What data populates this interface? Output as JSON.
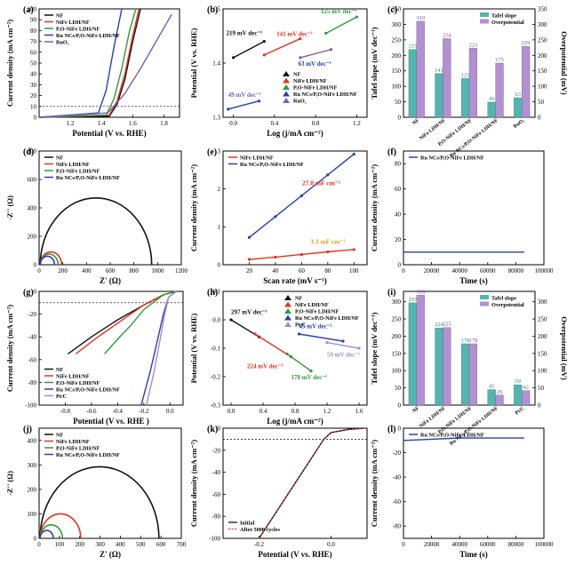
{
  "colors": {
    "NF": "#111111",
    "NiFe": "#e8311f",
    "PO": "#2e9a3a",
    "Ru": "#2440b8",
    "RuO2": "#7b5fb0",
    "PtC": "#a78acb",
    "tafel_bar": "#4fb7b0",
    "over_bar": "#b48fd4"
  },
  "panels": {
    "a": {
      "label": "(a)",
      "xlabel": "Potential (V vs. RHE)",
      "ylabel": "Current density (mA cm⁻²)",
      "legend": [
        "NF",
        "NiFe LDH/NF",
        "P,O-NiFe LDH/NF",
        "Ru NCs/P,O-NiFe LDH/NF",
        "RuO₂"
      ],
      "xticks": [
        "1.2",
        "1.4",
        "1.6",
        "1.8"
      ],
      "yticks": [
        "0",
        "10",
        "20",
        "30",
        "40",
        "50",
        "60",
        "70",
        "80",
        "90",
        "100"
      ]
    },
    "b": {
      "label": "(b)",
      "xlabel": "Log (j/mA cm⁻²)",
      "ylabel": "Potential (V vs. RHE)",
      "legend": [
        "NF",
        "NiFe LDH/NF",
        "P,O-NiFe LDH/NF",
        "Ru NCs/P,O-NiFe LDH/NF",
        "RuO₂"
      ],
      "annotations": [
        "219 mV dec⁻¹",
        "141 mV dec⁻¹",
        "125 mV dec⁻¹",
        "63 mV dec⁻¹",
        "49 mV dec⁻¹"
      ],
      "xticks": [
        "0.0",
        "0.4",
        "0.8",
        "1.2"
      ],
      "yticks": [
        "1.3",
        "1.4",
        "1.5"
      ]
    },
    "c": {
      "label": "(c)",
      "ylabel_left": "Tafel slope (mV dec⁻¹)",
      "ylabel_right": "Overpotential (mV)",
      "legend": [
        "Tafel slope",
        "Overpotential"
      ],
      "categories": [
        "NF",
        "NiFe LDH/NF",
        "P,O-NiFe LDH/NF",
        "Ru NCs/P,O-NiFe LDH/NF",
        "RuO₂"
      ],
      "yticks": [
        "0",
        "50",
        "100",
        "150",
        "200",
        "250",
        "300",
        "350"
      ]
    },
    "d": {
      "label": "(d)",
      "xlabel": "Z' (Ω)",
      "ylabel": "-Z'' (Ω)",
      "legend": [
        "NF",
        "NiFe LDH/NF",
        "P,O-NiFe LDH/NF",
        "Ru NCs/P,O-NiFe LDH/NF"
      ],
      "xticks": [
        "0",
        "200",
        "400",
        "600",
        "800",
        "1000",
        "1200"
      ],
      "yticks": [
        "0",
        "200",
        "400",
        "600",
        "800"
      ]
    },
    "e": {
      "label": "(e)",
      "xlabel": "Scan rate (mV s⁻¹)",
      "ylabel": "Current density (mA cm⁻²)",
      "legend": [
        "NiFe LDH/NF",
        "Ru NCs/P,O-NiFe LDH/NF"
      ],
      "annotations": [
        "27.0 mF cm⁻²",
        "3.3 mF cm⁻²"
      ],
      "xticks": [
        "20",
        "40",
        "60",
        "80",
        "100"
      ],
      "yticks": [
        "0",
        "1",
        "2",
        "3"
      ]
    },
    "f": {
      "label": "(f)",
      "xlabel": "Time (s)",
      "ylabel": "Current density (mA cm⁻²)",
      "legend": [
        "Ru NCs/P,O-NiFe LDH/NF"
      ],
      "xticks": [
        "0",
        "20000",
        "40000",
        "60000",
        "80000",
        "100000"
      ],
      "yticks": [
        "0",
        "20",
        "40",
        "60",
        "80"
      ]
    },
    "g": {
      "label": "(g)",
      "xlabel": "Potential (V vs. RHE )",
      "ylabel": "Current density (mA cm⁻²)",
      "legend": [
        "NF",
        "NiFe LDH/NF",
        "P,O-NiFe LDH/NF",
        "Ru NCs/P,O-NiFe LDH/NF",
        "Pt/C"
      ],
      "xticks": [
        "-0.8",
        "-0.6",
        "-0.4",
        "-0.2",
        "0.0"
      ],
      "yticks": [
        "-100",
        "-80",
        "-60",
        "-40",
        "-20",
        "0"
      ]
    },
    "h": {
      "label": "(h)",
      "xlabel": "Log (j/mA cm⁻²)",
      "ylabel": "Potential (V vs. RHE)",
      "legend": [
        "NF",
        "NiFe LDH/NF",
        "P,O-NiFe LDH/NF",
        "Ru NCs/P,O-NiFe LDH/NF",
        "Pt/C"
      ],
      "annotations": [
        "297 mV dec⁻¹",
        "224 mV dec⁻¹",
        "178 mV dec⁻¹",
        "45 mV dec⁻¹",
        "59 mV dec⁻¹"
      ],
      "xticks": [
        "0.0",
        "0.4",
        "0.8",
        "1.2",
        "1.6"
      ],
      "yticks": [
        "0.1",
        "0.0",
        "-0.1",
        "-0.2",
        "-0.3"
      ]
    },
    "i": {
      "label": "(i)",
      "ylabel_left": "Tafel slope (mV dec⁻¹)",
      "ylabel_right": "Overpotential (mV)",
      "legend": [
        "Tafel slope",
        "Overpotential"
      ],
      "categories": [
        "NF",
        "NiFe LDH/NF",
        "P,O-NiFe LDH/NF",
        "Ru NCs/P,O-NiFe LDH/NF",
        "Pt/C"
      ],
      "yticks": [
        "0",
        "50",
        "100",
        "150",
        "200",
        "250",
        "300"
      ]
    },
    "j": {
      "label": "(j)",
      "xlabel": "Z' (Ω)",
      "ylabel": "-Z'' (Ω)",
      "legend": [
        "NF",
        "NiFe LDH/NF",
        "P,O-NiFe LDH/NF",
        "Ru NCs/P,O-NiFe LDH/NF"
      ],
      "xticks": [
        "0",
        "100",
        "200",
        "300",
        "400",
        "500",
        "600",
        "700"
      ],
      "yticks": [
        "0",
        "100",
        "200",
        "300",
        "400"
      ]
    },
    "k": {
      "label": "(k)",
      "xlabel": "Potential (V vs. RHE)",
      "ylabel": "Current density (mA cm⁻²)",
      "legend": [
        "Initial",
        "After 5000 cycles"
      ],
      "xticks": [
        "-0.2",
        "0.0"
      ],
      "yticks": [
        "0",
        "-20",
        "-40",
        "-60",
        "-80",
        "-100"
      ]
    },
    "l": {
      "label": "(l)",
      "xlabel": "Time (s)",
      "ylabel": "Current density (mA cm⁻²)",
      "legend": [
        "Ru NCs/P,O-NiFe LDH/NF"
      ],
      "xticks": [
        "0",
        "20000",
        "40000",
        "60000",
        "80000",
        "100000"
      ],
      "yticks": [
        "0",
        "-20",
        "-40",
        "-60",
        "-80"
      ]
    }
  },
  "chart_data": [
    {
      "panel": "a",
      "type": "line",
      "xlim": [
        1.0,
        1.9
      ],
      "ylim": [
        0,
        100
      ],
      "series": [
        {
          "name": "NF",
          "x": [
            1.0,
            1.45,
            1.5,
            1.55,
            1.6,
            1.65
          ],
          "y": [
            0,
            1,
            12,
            35,
            70,
            100
          ]
        },
        {
          "name": "NiFe LDH/NF",
          "x": [
            1.0,
            1.45,
            1.5,
            1.55,
            1.6,
            1.64
          ],
          "y": [
            0,
            2,
            15,
            40,
            75,
            100
          ]
        },
        {
          "name": "P,O-NiFe LDH/NF",
          "x": [
            1.0,
            1.43,
            1.48,
            1.53,
            1.58,
            1.62
          ],
          "y": [
            0,
            2,
            17,
            45,
            80,
            100
          ]
        },
        {
          "name": "Ru NCs/P,O-NiFe LDH/NF",
          "x": [
            1.0,
            1.38,
            1.43,
            1.48,
            1.53
          ],
          "y": [
            0,
            4,
            25,
            65,
            100
          ]
        },
        {
          "name": "RuO₂",
          "x": [
            1.0,
            1.44,
            1.55,
            1.65,
            1.75,
            1.85
          ],
          "y": [
            0,
            4,
            22,
            45,
            70,
            95
          ]
        }
      ]
    },
    {
      "panel": "b",
      "type": "line",
      "xlim": [
        -0.1,
        1.3
      ],
      "ylim": [
        1.3,
        1.5
      ],
      "series": [
        {
          "name": "NF",
          "x": [
            0.0,
            0.3
          ],
          "y": [
            1.41,
            1.44
          ],
          "slope_label": "219 mV dec⁻¹"
        },
        {
          "name": "NiFe LDH/NF",
          "x": [
            0.3,
            0.65
          ],
          "y": [
            1.415,
            1.445
          ],
          "slope_label": "141 mV dec⁻¹"
        },
        {
          "name": "P,O-NiFe LDH/NF",
          "x": [
            0.9,
            1.2
          ],
          "y": [
            1.455,
            1.485
          ],
          "slope_label": "125 mV dec⁻¹"
        },
        {
          "name": "Ru NCs/P,O-NiFe LDH/NF",
          "x": [
            -0.05,
            0.25
          ],
          "y": [
            1.315,
            1.33
          ],
          "slope_label": "49 mV dec⁻¹"
        },
        {
          "name": "RuO₂",
          "x": [
            0.65,
            0.95
          ],
          "y": [
            1.41,
            1.425
          ],
          "slope_label": "63 mV dec⁻¹"
        }
      ]
    },
    {
      "panel": "c",
      "type": "bar",
      "categories": [
        "NF",
        "NiFe LDH/NF",
        "P,O-NiFe LDH/NF",
        "Ru NCs/P,O-NiFe LDH/NF",
        "RuO₂"
      ],
      "ylim": [
        0,
        350
      ],
      "series": [
        {
          "name": "Tafel slope",
          "values": [
            219,
            141,
            125,
            49,
            63
          ]
        },
        {
          "name": "Overpotential",
          "values": [
            310,
            254,
            223,
            175,
            229
          ]
        }
      ]
    },
    {
      "panel": "d",
      "type": "line",
      "xlim": [
        0,
        1200
      ],
      "ylim": [
        0,
        800
      ],
      "series": [
        {
          "name": "NF",
          "shape": "semicircle",
          "x_start": 10,
          "x_end": 950
        },
        {
          "name": "NiFe LDH/NF",
          "shape": "semicircle",
          "x_start": 10,
          "x_end": 190
        },
        {
          "name": "P,O-NiFe LDH/NF",
          "shape": "semicircle",
          "x_start": 10,
          "x_end": 160
        },
        {
          "name": "Ru NCs/P,O-NiFe LDH/NF",
          "shape": "semicircle",
          "x_start": 10,
          "x_end": 130
        }
      ]
    },
    {
      "panel": "e",
      "type": "scatter",
      "xlim": [
        0,
        110
      ],
      "ylim": [
        0,
        3
      ],
      "series": [
        {
          "name": "NiFe LDH/NF",
          "x": [
            20,
            40,
            60,
            80,
            100
          ],
          "y": [
            0.14,
            0.2,
            0.27,
            0.34,
            0.4
          ],
          "fit_label": "3.3 mF cm⁻²"
        },
        {
          "name": "Ru NCs/P,O-NiFe LDH/NF",
          "x": [
            20,
            40,
            60,
            80,
            100
          ],
          "y": [
            0.72,
            1.27,
            1.82,
            2.37,
            2.92
          ],
          "fit_label": "27.0 mF cm⁻²"
        }
      ]
    },
    {
      "panel": "f",
      "type": "line",
      "xlim": [
        0,
        100000
      ],
      "ylim": [
        0,
        90
      ],
      "series": [
        {
          "name": "Ru NCs/P,O-NiFe LDH/NF",
          "x": [
            0,
            20000,
            40000,
            60000,
            86000
          ],
          "y": [
            10,
            10,
            10,
            10,
            10
          ]
        }
      ]
    },
    {
      "panel": "g",
      "type": "line",
      "xlim": [
        -1.0,
        0.1
      ],
      "ylim": [
        -100,
        0
      ],
      "series": [
        {
          "name": "NF",
          "x": [
            -0.78,
            -0.6,
            -0.4,
            -0.2,
            -0.05,
            0.05
          ],
          "y": [
            -55,
            -40,
            -25,
            -12,
            -3,
            0
          ]
        },
        {
          "name": "NiFe LDH/NF",
          "x": [
            -0.72,
            -0.55,
            -0.4,
            -0.2,
            -0.05,
            0.05
          ],
          "y": [
            -55,
            -40,
            -28,
            -12,
            -3,
            0
          ]
        },
        {
          "name": "P,O-NiFe LDH/NF",
          "x": [
            -0.5,
            -0.4,
            -0.3,
            -0.2,
            -0.05,
            0.05
          ],
          "y": [
            -55,
            -42,
            -30,
            -16,
            -3,
            0
          ]
        },
        {
          "name": "Ru NCs/P,O-NiFe LDH/NF",
          "x": [
            -0.22,
            -0.15,
            -0.1,
            -0.05,
            -0.01,
            0.05
          ],
          "y": [
            -100,
            -70,
            -45,
            -20,
            -5,
            0
          ]
        },
        {
          "name": "Pt/C",
          "x": [
            -0.18,
            -0.12,
            -0.08,
            -0.04,
            -0.01,
            0.05
          ],
          "y": [
            -100,
            -70,
            -45,
            -20,
            -5,
            0
          ]
        }
      ]
    },
    {
      "panel": "h",
      "type": "line",
      "xlim": [
        -0.1,
        1.7
      ],
      "ylim": [
        -0.3,
        0.1
      ],
      "series": [
        {
          "name": "NF",
          "x": [
            0.0,
            0.35
          ],
          "y": [
            0.0,
            -0.06
          ],
          "slope_label": "297 mV dec⁻¹"
        },
        {
          "name": "NiFe LDH/NF",
          "x": [
            0.3,
            0.75
          ],
          "y": [
            -0.05,
            -0.13
          ],
          "slope_label": "224 mV dec⁻¹"
        },
        {
          "name": "P,O-NiFe LDH/NF",
          "x": [
            0.7,
            1.0
          ],
          "y": [
            -0.12,
            -0.18
          ],
          "slope_label": "178 mV dec⁻¹"
        },
        {
          "name": "Ru NCs/P,O-NiFe LDH/NF",
          "x": [
            0.85,
            1.4
          ],
          "y": [
            -0.05,
            -0.075
          ],
          "slope_label": "45 mV dec⁻¹"
        },
        {
          "name": "Pt/C",
          "x": [
            1.2,
            1.6
          ],
          "y": [
            -0.08,
            -0.1
          ],
          "slope_label": "59 mV dec⁻¹"
        }
      ]
    },
    {
      "panel": "i",
      "type": "bar",
      "categories": [
        "NF",
        "NiFe LDH/NF",
        "P,O-NiFe LDH/NF",
        "Ru NCs/P,O-NiFe LDH/NF",
        "Pt/C"
      ],
      "ylim": [
        0,
        330
      ],
      "series": [
        {
          "name": "Tafel slope",
          "values": [
            297,
            224,
            178,
            45,
            59
          ]
        },
        {
          "name": "Overpotential",
          "values": [
            319,
            225,
            178,
            29,
            42
          ]
        }
      ]
    },
    {
      "panel": "j",
      "type": "line",
      "xlim": [
        0,
        700
      ],
      "ylim": [
        0,
        450
      ],
      "series": [
        {
          "name": "NF",
          "shape": "semicircle",
          "x_start": 5,
          "x_end": 590
        },
        {
          "name": "NiFe LDH/NF",
          "shape": "semicircle",
          "x_start": 5,
          "x_end": 205
        },
        {
          "name": "P,O-NiFe LDH/NF",
          "shape": "semicircle",
          "x_start": 5,
          "x_end": 115
        },
        {
          "name": "Ru NCs/P,O-NiFe LDH/NF",
          "shape": "semicircle",
          "x_start": 5,
          "x_end": 70
        }
      ]
    },
    {
      "panel": "k",
      "type": "line",
      "xlim": [
        -0.3,
        0.1
      ],
      "ylim": [
        -100,
        0
      ],
      "series": [
        {
          "name": "Initial",
          "x": [
            -0.2,
            -0.15,
            -0.1,
            -0.05,
            -0.02,
            0.0,
            0.05,
            0.09
          ],
          "y": [
            -100,
            -75,
            -50,
            -25,
            -10,
            -4,
            -1,
            0
          ]
        },
        {
          "name": "After 5000 cycles",
          "x": [
            -0.2,
            -0.15,
            -0.1,
            -0.05,
            -0.02,
            0.0,
            0.05,
            0.09
          ],
          "y": [
            -100,
            -75,
            -50,
            -25,
            -10,
            -4,
            -1,
            0
          ]
        }
      ]
    },
    {
      "panel": "l",
      "type": "line",
      "xlim": [
        0,
        100000
      ],
      "ylim": [
        -90,
        0
      ],
      "series": [
        {
          "name": "Ru NCs/P,O-NiFe LDH/NF",
          "x": [
            0,
            20000,
            40000,
            60000,
            86000
          ],
          "y": [
            -10,
            -9,
            -8,
            -8,
            -8
          ]
        }
      ]
    }
  ]
}
